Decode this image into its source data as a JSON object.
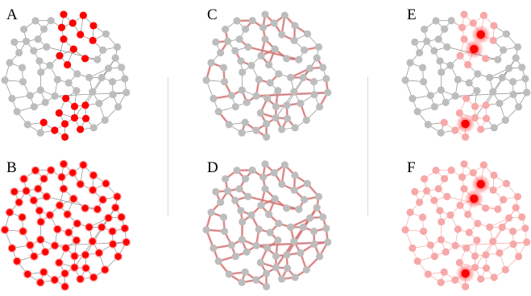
{
  "panels": [
    {
      "id": "A",
      "label": "A",
      "mode": "subset_nodes"
    },
    {
      "id": "B",
      "label": "B",
      "mode": "all_nodes"
    },
    {
      "id": "C",
      "label": "C",
      "mode": "subset_edges"
    },
    {
      "id": "D",
      "label": "D",
      "mode": "all_edges"
    },
    {
      "id": "E",
      "label": "E",
      "mode": "glow_hubs"
    },
    {
      "id": "F",
      "label": "F",
      "mode": "glow_all_faded"
    }
  ],
  "colors": {
    "node_gray": "#bdbdbd",
    "edge_gray": "#8c8c8c",
    "highlight_red": "#ff0000",
    "edge_red": "#ff6b6b",
    "faded_pink": "#f7a8a8",
    "divider": "#d7d7d7"
  }
}
